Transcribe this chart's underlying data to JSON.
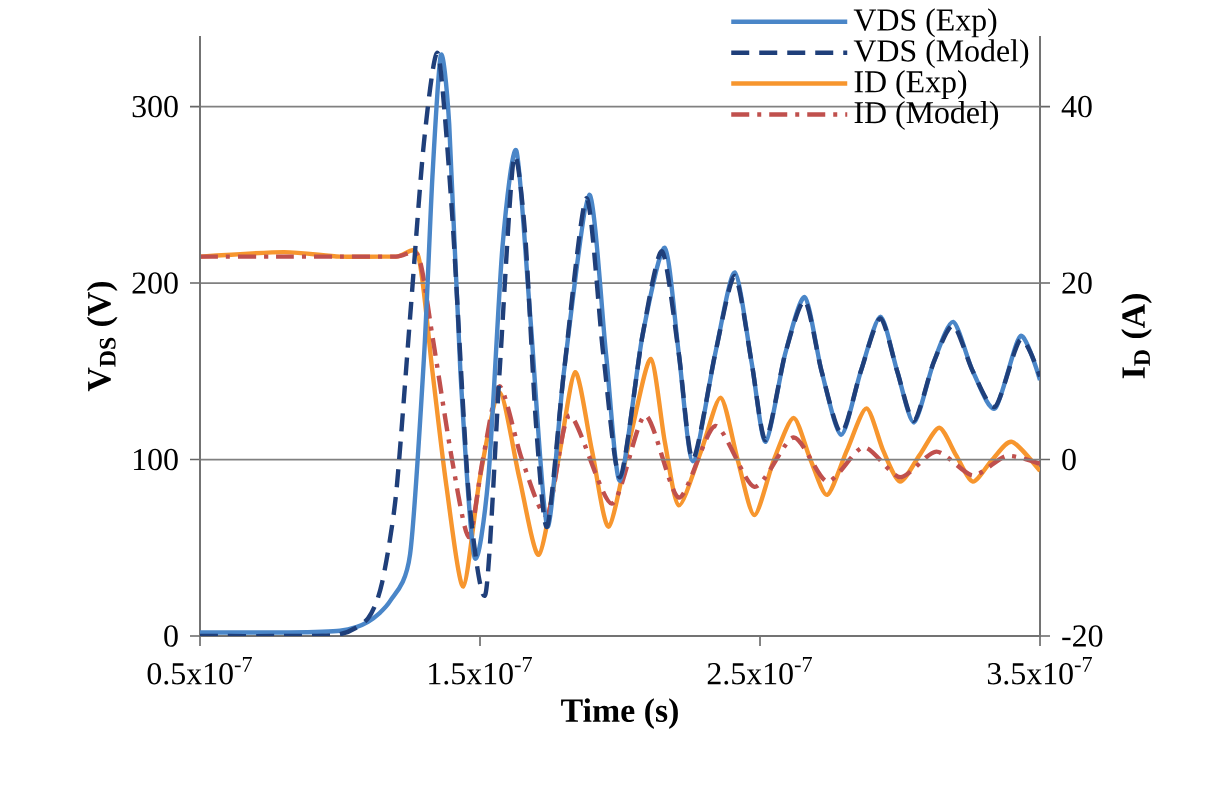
{
  "chart_data": {
    "type": "line",
    "xlabel": "Time (s)",
    "ylabel": "V$_{DS}$ (V)",
    "y2label": "I$_{D}$ (A)",
    "xlim": [
      5e-08,
      3.5e-07
    ],
    "xticks": [
      {
        "value": 5e-08,
        "label": "0.5x10$^{-7}$"
      },
      {
        "value": 1.5e-07,
        "label": "1.5x10$^{-7}$"
      },
      {
        "value": 2.5e-07,
        "label": "2.5x10$^{-7}$"
      },
      {
        "value": 3.5e-07,
        "label": "3.5x10$^{-7}$"
      }
    ],
    "ylim": [
      0,
      340
    ],
    "yticks": [
      0,
      100,
      200,
      300
    ],
    "y2lim": [
      -20,
      48
    ],
    "y2ticks": [
      -20,
      0,
      20,
      40
    ],
    "grid": "y",
    "legend": "top right",
    "series": [
      {
        "name": "VDS (Exp)",
        "color": "#4a86c8",
        "line_style": "solid",
        "axis": "y",
        "x": [
          5e-08,
          8e-08,
          1e-07,
          1.1e-07,
          1.18e-07,
          1.25e-07,
          1.3e-07,
          1.33e-07,
          1.36e-07,
          1.39e-07,
          1.43e-07,
          1.48e-07,
          1.53e-07,
          1.58e-07,
          1.63e-07,
          1.68e-07,
          1.74e-07,
          1.8e-07,
          1.89e-07,
          1.95e-07,
          2e-07,
          2.08e-07,
          2.16e-07,
          2.21e-07,
          2.26e-07,
          2.34e-07,
          2.41e-07,
          2.47e-07,
          2.52e-07,
          2.59e-07,
          2.66e-07,
          2.72e-07,
          2.79e-07,
          2.86e-07,
          2.93e-07,
          2.99e-07,
          3.05e-07,
          3.12e-07,
          3.19e-07,
          3.26e-07,
          3.34e-07,
          3.43e-07,
          3.5e-07
        ],
        "values": [
          2,
          2,
          3,
          8,
          20,
          46,
          158,
          260,
          329,
          290,
          150,
          45,
          90,
          220,
          275,
          180,
          62,
          150,
          250,
          160,
          88,
          170,
          220,
          160,
          99,
          160,
          206,
          155,
          110,
          160,
          192,
          150,
          114,
          150,
          181,
          150,
          121,
          155,
          178,
          150,
          129,
          170,
          145
        ]
      },
      {
        "name": "VDS (Model)",
        "color": "#1f3f7a",
        "line_style": "dashed",
        "axis": "y",
        "x": [
          5e-08,
          8e-08,
          1e-07,
          1.1e-07,
          1.15e-07,
          1.2e-07,
          1.25e-07,
          1.3e-07,
          1.35e-07,
          1.4e-07,
          1.46e-07,
          1.52e-07,
          1.57e-07,
          1.62e-07,
          1.66e-07,
          1.7e-07,
          1.74e-07,
          1.8e-07,
          1.88e-07,
          1.94e-07,
          2e-07,
          2.08e-07,
          2.15e-07,
          2.21e-07,
          2.26e-07,
          2.34e-07,
          2.41e-07,
          2.47e-07,
          2.52e-07,
          2.59e-07,
          2.66e-07,
          2.72e-07,
          2.79e-07,
          2.86e-07,
          2.93e-07,
          2.99e-07,
          3.05e-07,
          3.12e-07,
          3.19e-07,
          3.26e-07,
          3.34e-07,
          3.43e-07,
          3.5e-07
        ],
        "values": [
          0,
          0,
          1,
          10,
          30,
          80,
          180,
          280,
          330,
          240,
          80,
          24,
          150,
          270,
          230,
          120,
          62,
          150,
          248,
          160,
          90,
          170,
          218,
          160,
          100,
          160,
          204,
          155,
          111,
          160,
          190,
          150,
          115,
          150,
          180,
          150,
          122,
          155,
          176,
          150,
          130,
          168,
          147
        ]
      },
      {
        "name": "ID (Exp)",
        "color": "#f7962e",
        "line_style": "solid",
        "axis": "y2",
        "x": [
          5e-08,
          8e-08,
          1e-07,
          1.2e-07,
          1.28e-07,
          1.33e-07,
          1.38e-07,
          1.44e-07,
          1.5e-07,
          1.57e-07,
          1.64e-07,
          1.71e-07,
          1.78e-07,
          1.84e-07,
          1.9e-07,
          1.96e-07,
          2.04e-07,
          2.11e-07,
          2.16e-07,
          2.21e-07,
          2.29e-07,
          2.36e-07,
          2.42e-07,
          2.48e-07,
          2.55e-07,
          2.62e-07,
          2.68e-07,
          2.74e-07,
          2.81e-07,
          2.88e-07,
          2.94e-07,
          3e-07,
          3.07e-07,
          3.14e-07,
          3.2e-07,
          3.26e-07,
          3.33e-07,
          3.4e-07,
          3.5e-07
        ],
        "values": [
          23,
          23.5,
          23,
          23,
          23,
          10,
          -3,
          -14.4,
          -2,
          7.6,
          -2,
          -10.8,
          0,
          9.9,
          1,
          -7.6,
          3,
          11.4,
          2,
          -5.2,
          1,
          7,
          0,
          -6.3,
          0,
          4.7,
          0,
          -4,
          1,
          5.8,
          1,
          -2.5,
          0.5,
          3.6,
          0.5,
          -2.5,
          0,
          2,
          -1.3
        ]
      },
      {
        "name": "ID (Model)",
        "color": "#c0504d",
        "line_style": "dashdot",
        "axis": "y2",
        "x": [
          5e-08,
          8e-08,
          1e-07,
          1.2e-07,
          1.28e-07,
          1.33e-07,
          1.4e-07,
          1.46e-07,
          1.51e-07,
          1.57e-07,
          1.65e-07,
          1.74e-07,
          1.82e-07,
          1.97e-07,
          2.09e-07,
          2.21e-07,
          2.34e-07,
          2.48e-07,
          2.62e-07,
          2.74e-07,
          2.87e-07,
          3e-07,
          3.13e-07,
          3.26e-07,
          3.38e-07,
          3.5e-07
        ],
        "values": [
          23,
          23,
          23,
          23,
          23,
          14,
          0,
          -8.8,
          0,
          8.3,
          0,
          -6.3,
          5,
          -5,
          5,
          -4.3,
          3.8,
          -3.1,
          2.5,
          -2.5,
          1.4,
          -2,
          0.9,
          -1.8,
          0.4,
          -0.5
        ]
      }
    ]
  }
}
